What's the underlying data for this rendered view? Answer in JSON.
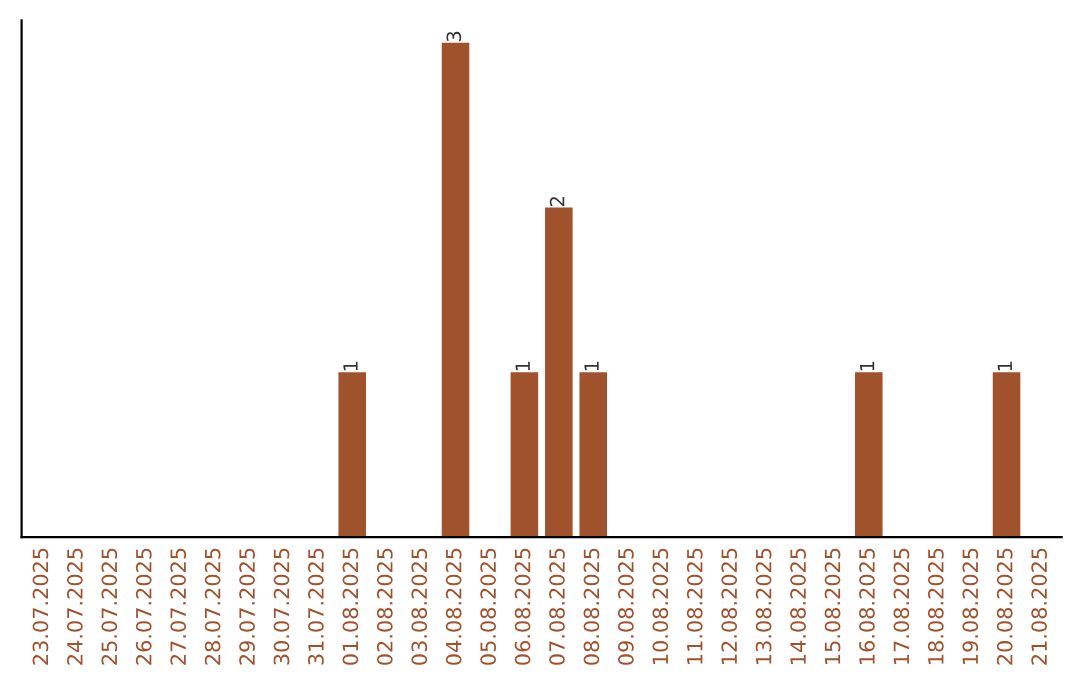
{
  "chart_data": {
    "type": "bar",
    "categories": [
      "23.07.2025",
      "24.07.2025",
      "25.07.2025",
      "26.07.2025",
      "27.07.2025",
      "28.07.2025",
      "29.07.2025",
      "30.07.2025",
      "31.07.2025",
      "01.08.2025",
      "02.08.2025",
      "03.08.2025",
      "04.08.2025",
      "05.08.2025",
      "06.08.2025",
      "07.08.2025",
      "08.08.2025",
      "09.08.2025",
      "10.08.2025",
      "11.08.2025",
      "12.08.2025",
      "13.08.2025",
      "14.08.2025",
      "15.08.2025",
      "16.08.2025",
      "17.08.2025",
      "18.08.2025",
      "19.08.2025",
      "20.08.2025",
      "21.08.2025"
    ],
    "values": [
      0,
      0,
      0,
      0,
      0,
      0,
      0,
      0,
      0,
      1,
      0,
      0,
      3,
      0,
      1,
      2,
      1,
      0,
      0,
      0,
      0,
      0,
      0,
      0,
      1,
      0,
      0,
      0,
      1,
      0
    ],
    "value_labels": [
      null,
      null,
      null,
      null,
      null,
      null,
      null,
      null,
      null,
      "1",
      null,
      null,
      "3",
      null,
      "1",
      "2",
      "1",
      null,
      null,
      null,
      null,
      null,
      null,
      null,
      "1",
      null,
      null,
      null,
      "1",
      null
    ],
    "color": "#a0522d",
    "tick_labels": "x",
    "grid": false,
    "legend": false
  }
}
